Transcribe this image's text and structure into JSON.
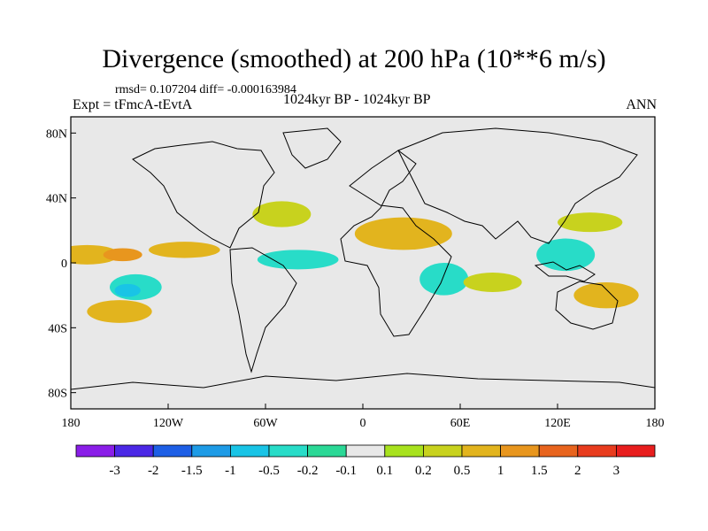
{
  "chart_data": {
    "type": "heatmap",
    "title": "Divergence (smoothed) at 200 hPa (10**6 m/s)",
    "stats_line": "rmsd= 0.107204  diff= -0.000163984",
    "left_label": "Expt = tFmcA-tEvtA",
    "center_label": "1024kyr BP - 1024kyr BP",
    "right_label": "ANN",
    "x_ticks": [
      "180",
      "120W",
      "60W",
      "0",
      "60E",
      "120E",
      "180"
    ],
    "x_tick_values": [
      -180,
      -120,
      -60,
      0,
      60,
      120,
      180
    ],
    "y_ticks": [
      "80N",
      "40N",
      "0",
      "40S",
      "80S"
    ],
    "y_tick_values": [
      80,
      40,
      0,
      -40,
      -80
    ],
    "xlim": [
      -180,
      180
    ],
    "ylim": [
      -90,
      90
    ],
    "colorbar": {
      "levels": [
        "-3",
        "-2",
        "-1.5",
        "-1",
        "-0.5",
        "-0.2",
        "-0.1",
        "0.1",
        "0.2",
        "0.5",
        "1",
        "1.5",
        "2",
        "3"
      ],
      "colors": [
        "#8a1ee8",
        "#4b28e6",
        "#1e5fe6",
        "#1e9be6",
        "#19c4e6",
        "#28dcc8",
        "#2bd896",
        "#e8e8e8",
        "#a8e21e",
        "#c8d21e",
        "#e2b41e",
        "#e8961e",
        "#e8641e",
        "#e83c1e",
        "#e81e1e"
      ]
    },
    "regions": [
      {
        "name": "tropical-pacific-band",
        "lon": -170,
        "lat": 5,
        "rx": 20,
        "ry": 6,
        "level": 0.5
      },
      {
        "name": "central-pacific-core",
        "lon": -148,
        "lat": 5,
        "rx": 12,
        "ry": 4,
        "level": 1
      },
      {
        "name": "east-pacific-north",
        "lon": -110,
        "lat": 8,
        "rx": 22,
        "ry": 5,
        "level": 0.5
      },
      {
        "name": "south-pacific-blue",
        "lon": -140,
        "lat": -15,
        "rx": 16,
        "ry": 8,
        "level": -0.5
      },
      {
        "name": "south-pacific-core",
        "lon": -145,
        "lat": -17,
        "rx": 8,
        "ry": 4,
        "level": -1
      },
      {
        "name": "south-pacific-yellow",
        "lon": -150,
        "lat": -30,
        "rx": 20,
        "ry": 7,
        "level": 0.5
      },
      {
        "name": "tropical-atlantic",
        "lon": -40,
        "lat": 2,
        "rx": 25,
        "ry": 6,
        "level": -0.5
      },
      {
        "name": "north-atlantic-green",
        "lon": -50,
        "lat": 30,
        "rx": 18,
        "ry": 8,
        "level": 0.2
      },
      {
        "name": "africa-asia-yellow",
        "lon": 25,
        "lat": 18,
        "rx": 30,
        "ry": 10,
        "level": 0.5
      },
      {
        "name": "central-africa-blue",
        "lon": 50,
        "lat": -10,
        "rx": 15,
        "ry": 10,
        "level": -0.5
      },
      {
        "name": "indian-ocean-green",
        "lon": 80,
        "lat": -12,
        "rx": 18,
        "ry": 6,
        "level": 0.2
      },
      {
        "name": "warm-pool-blue",
        "lon": 125,
        "lat": 5,
        "rx": 18,
        "ry": 10,
        "level": -0.5
      },
      {
        "name": "south-pacific-yellow-east",
        "lon": 150,
        "lat": -20,
        "rx": 20,
        "ry": 8,
        "level": 0.5
      },
      {
        "name": "north-pacific-green",
        "lon": 140,
        "lat": 25,
        "rx": 20,
        "ry": 6,
        "level": 0.2
      }
    ]
  },
  "colors": {
    "ocean_fill": "#e8e8e8",
    "coastline": "#000000",
    "frame": "#000000"
  }
}
